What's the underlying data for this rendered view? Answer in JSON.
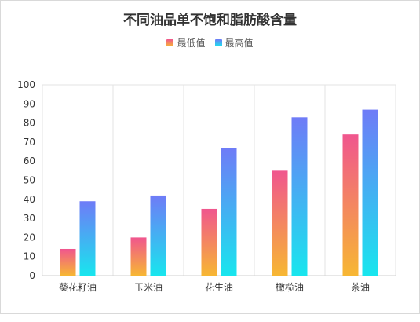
{
  "chart_data": {
    "type": "bar",
    "title": "不同油品单不饱和脂肪酸含量",
    "categories": [
      "葵花籽油",
      "玉米油",
      "花生油",
      "橄榄油",
      "茶油"
    ],
    "series": [
      {
        "name": "最低值",
        "values": [
          14,
          20,
          35,
          55,
          74
        ],
        "gradient": [
          "#f0568e",
          "#f7b733"
        ]
      },
      {
        "name": "最高值",
        "values": [
          39,
          42,
          67,
          83,
          87
        ],
        "gradient": [
          "#6f7bf7",
          "#18e6ee"
        ]
      }
    ],
    "ylim": [
      0,
      100
    ],
    "yticks": [
      0,
      10,
      20,
      30,
      40,
      50,
      60,
      70,
      80,
      90,
      100
    ],
    "legend_position": "top-center",
    "grid": "vertical-category-separators"
  }
}
